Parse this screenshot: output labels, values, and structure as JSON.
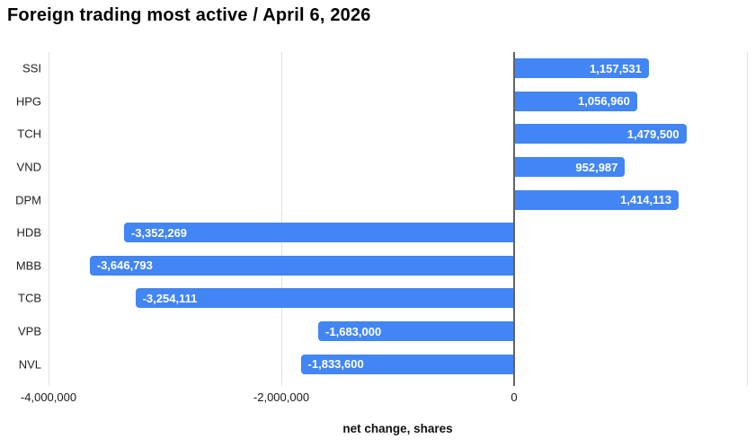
{
  "title": "Foreign trading most active / April 6, 2026",
  "chart_data": {
    "type": "bar",
    "orientation": "horizontal",
    "title": "Foreign trading most active / April 6, 2026",
    "categories": [
      "SSI",
      "HPG",
      "TCH",
      "VND",
      "DPM",
      "HDB",
      "MBB",
      "TCB",
      "VPB",
      "NVL"
    ],
    "values": [
      1157531,
      1056960,
      1479500,
      952987,
      1414113,
      -3352269,
      -3646793,
      -3254111,
      -1683000,
      -1833600
    ],
    "value_labels": [
      "1,157,531",
      "1,056,960",
      "1,479,500",
      "952,987",
      "1,414,113",
      "-3,352,269",
      "-3,646,793",
      "-3,254,111",
      "-1,683,000",
      "-1,833,600"
    ],
    "xlabel": "net change, shares",
    "ylabel": "",
    "xlim": [
      -4000000,
      2000000
    ],
    "x_ticks": [
      {
        "value": -4000000,
        "label": "-4,000,000"
      },
      {
        "value": -2000000,
        "label": "-2,000,000"
      },
      {
        "value": 0,
        "label": "0"
      }
    ],
    "gridline_values": [
      -4000000,
      -2000000,
      0,
      2000000
    ],
    "grid": true,
    "legend": false,
    "colors": {
      "bar": "#4285f4",
      "bar_label": "#ffffff",
      "grid": "#e0e0e0",
      "zero_line": "#5f6368",
      "axis_text": "#1a1a1a",
      "category_text": "#212121",
      "title_text": "#000000"
    }
  }
}
